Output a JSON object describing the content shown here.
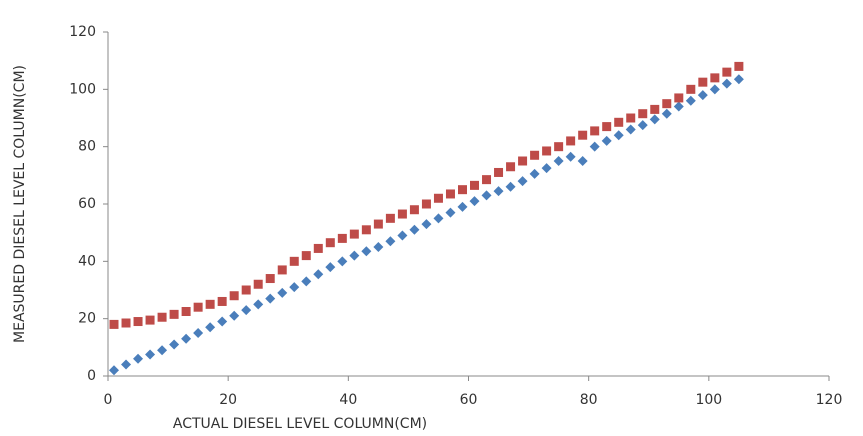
{
  "chart_data": {
    "type": "scatter",
    "x_label": "ACTUAL DIESEL LEVEL COLUMN(CM)",
    "y_label": "MEASURED DIESEL LEVEL COLUMN(CM)",
    "xlim": [
      0,
      120
    ],
    "xticks": [
      0,
      20,
      40,
      60,
      80,
      100,
      120
    ],
    "ylim": [
      0,
      120
    ],
    "yticks": [
      0,
      20,
      40,
      60,
      80,
      100,
      120
    ],
    "grid": false,
    "x": [
      1,
      3,
      5,
      7,
      9,
      11,
      13,
      15,
      17,
      19,
      21,
      23,
      25,
      27,
      29,
      31,
      33,
      35,
      37,
      39,
      41,
      43,
      45,
      47,
      49,
      51,
      53,
      55,
      57,
      59,
      61,
      63,
      65,
      67,
      69,
      71,
      73,
      75,
      77,
      79,
      81,
      83,
      85,
      87,
      89,
      91,
      93,
      95,
      97,
      99,
      101,
      103,
      105
    ],
    "series": [
      {
        "color": "#4a7ebb",
        "marker": "diamond",
        "values": [
          2,
          4,
          6,
          7.5,
          9,
          11,
          13,
          15,
          17,
          19,
          21,
          23,
          25,
          27,
          29,
          31,
          33,
          35.5,
          38,
          40,
          42,
          43.5,
          45,
          47,
          49,
          51,
          53,
          55,
          57,
          59,
          61,
          63,
          64.5,
          66,
          68,
          70.5,
          72.5,
          75,
          76.5,
          75,
          80,
          82,
          84,
          86,
          87.5,
          89.5,
          91.5,
          94,
          96,
          98,
          100,
          102,
          103.5
        ]
      },
      {
        "color": "#be4b48",
        "marker": "square",
        "values": [
          18,
          18.5,
          19,
          19.5,
          20.5,
          21.5,
          22.5,
          24,
          25,
          26,
          28,
          30,
          32,
          34,
          37,
          40,
          42,
          44.5,
          46.5,
          48,
          49.5,
          51,
          53,
          55,
          56.5,
          58,
          60,
          62,
          63.5,
          65,
          66.5,
          68.5,
          71,
          73,
          75,
          77,
          78.5,
          80,
          82,
          84,
          85.5,
          87,
          88.5,
          90,
          91.5,
          93,
          95,
          97,
          100,
          102.5,
          104,
          106,
          108
        ]
      }
    ]
  }
}
